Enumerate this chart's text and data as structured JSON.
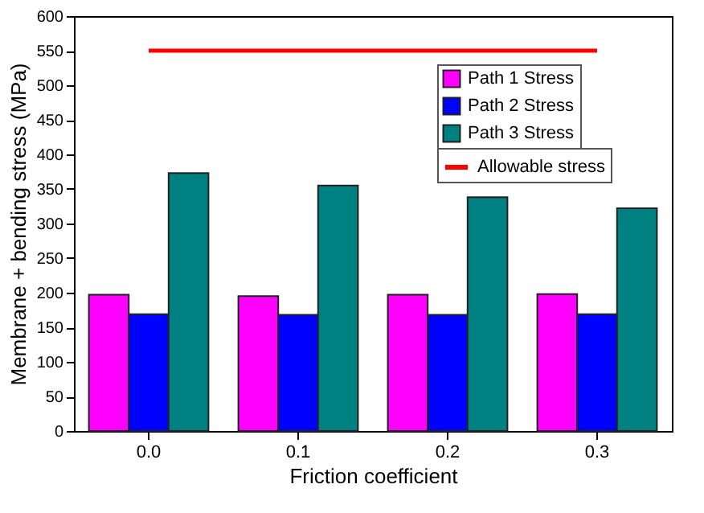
{
  "chart_data": {
    "type": "bar",
    "xlabel": "Friction coefficient",
    "ylabel": "Membrane + bending stress (MPa)",
    "categories": [
      "0.0",
      "0.1",
      "0.2",
      "0.3"
    ],
    "series": [
      {
        "name": "Path 1 Stress",
        "color": "#ff00ff",
        "values": [
          197,
          195,
          197,
          198
        ]
      },
      {
        "name": "Path 2 Stress",
        "color": "#0000ff",
        "values": [
          169,
          168,
          168,
          169
        ]
      },
      {
        "name": "Path 3 Stress",
        "color": "#008080",
        "values": [
          373,
          355,
          338,
          322
        ]
      },
      {
        "name": "Allowable stress",
        "type": "line",
        "color": "#ff0000",
        "values": [
          550,
          550,
          550,
          550
        ]
      }
    ],
    "ylim": [
      0,
      600
    ],
    "yticks": [
      0,
      50,
      100,
      150,
      200,
      250,
      300,
      350,
      400,
      450,
      500,
      550,
      600
    ],
    "legend": "top right",
    "grid": false
  }
}
